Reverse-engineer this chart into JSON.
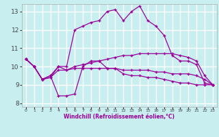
{
  "background_color": "#c8eef0",
  "grid_color": "#ffffff",
  "line_color": "#990099",
  "marker": "+",
  "xlabel": "Windchill (Refroidissement éolien,°C)",
  "ylabel_ticks": [
    8,
    9,
    10,
    11,
    12,
    13
  ],
  "xlim": [
    -0.5,
    23.5
  ],
  "ylim": [
    7.8,
    13.4
  ],
  "xticks": [
    0,
    1,
    2,
    3,
    4,
    5,
    6,
    7,
    8,
    9,
    10,
    11,
    12,
    13,
    14,
    15,
    16,
    17,
    18,
    19,
    20,
    21,
    22,
    23
  ],
  "lines": [
    [
      10.4,
      10.0,
      9.3,
      9.5,
      8.4,
      8.4,
      8.5,
      10.0,
      10.3,
      10.3,
      9.9,
      9.9,
      9.6,
      9.5,
      9.5,
      9.4,
      9.4,
      9.3,
      9.2,
      9.1,
      9.1,
      9.0,
      9.0,
      9.0
    ],
    [
      10.4,
      10.0,
      9.3,
      9.5,
      10.0,
      10.0,
      12.0,
      12.2,
      12.4,
      12.5,
      13.0,
      13.1,
      12.5,
      13.0,
      13.3,
      12.5,
      12.2,
      11.7,
      10.6,
      10.3,
      10.3,
      10.1,
      9.1,
      9.0
    ],
    [
      10.4,
      10.0,
      9.3,
      9.4,
      10.0,
      9.8,
      10.0,
      10.1,
      10.2,
      10.3,
      10.4,
      10.5,
      10.6,
      10.6,
      10.7,
      10.7,
      10.7,
      10.7,
      10.7,
      10.6,
      10.5,
      10.3,
      9.5,
      9.0
    ],
    [
      10.4,
      10.0,
      9.3,
      9.4,
      9.8,
      9.8,
      9.9,
      9.9,
      9.9,
      9.9,
      9.9,
      9.9,
      9.8,
      9.8,
      9.8,
      9.8,
      9.7,
      9.7,
      9.6,
      9.6,
      9.6,
      9.5,
      9.3,
      9.0
    ]
  ]
}
